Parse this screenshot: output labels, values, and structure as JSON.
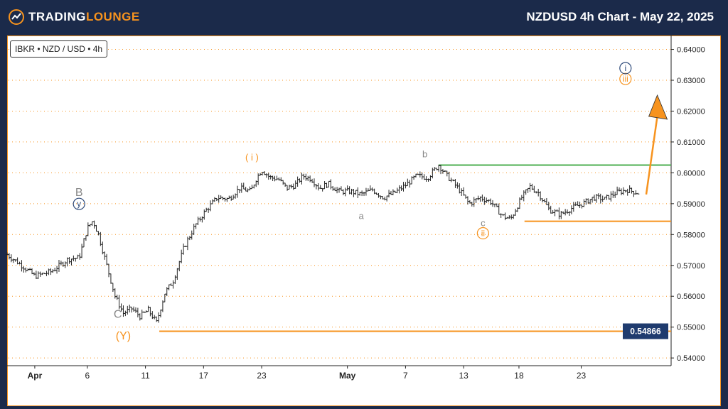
{
  "header": {
    "brand_main": "TRADING",
    "brand_accent": "LOUNGE",
    "title": "NZDUSD 4h Chart - May 22, 2025"
  },
  "symbol_label": "IBKR • NZD / USD • 4h",
  "colors": {
    "background": "#1b2a4a",
    "accent": "#f7931e",
    "wave_navy": "#2e4a7a",
    "wave_grey": "#888888",
    "green_line": "#4caf50",
    "price_label_bg": "#1f3b6e"
  },
  "chart_data": {
    "type": "candlestick",
    "title": "NZDUSD 4h Chart - May 22, 2025",
    "y_ticks": [
      "0.54000",
      "0.55000",
      "0.56000",
      "0.57000",
      "0.58000",
      "0.59000",
      "0.60000",
      "0.61000",
      "0.62000",
      "0.63000",
      "0.64000"
    ],
    "x_ticks": [
      "Apr",
      "6",
      "11",
      "17",
      "23",
      "May",
      "7",
      "13",
      "18",
      "23"
    ],
    "ylim": [
      0.5375,
      0.6445
    ],
    "close_path": [
      [
        0,
        0.5735
      ],
      [
        12,
        0.5695
      ],
      [
        20,
        0.5665
      ],
      [
        32,
        0.568
      ],
      [
        44,
        0.572
      ],
      [
        52,
        0.5725
      ],
      [
        58,
        0.582
      ],
      [
        62,
        0.5845
      ],
      [
        66,
        0.58
      ],
      [
        72,
        0.57
      ],
      [
        78,
        0.56
      ],
      [
        84,
        0.5545
      ],
      [
        90,
        0.556
      ],
      [
        96,
        0.5535
      ],
      [
        102,
        0.5555
      ],
      [
        108,
        0.5515
      ],
      [
        114,
        0.561
      ],
      [
        120,
        0.565
      ],
      [
        128,
        0.576
      ],
      [
        136,
        0.583
      ],
      [
        144,
        0.588
      ],
      [
        152,
        0.592
      ],
      [
        160,
        0.5915
      ],
      [
        168,
        0.595
      ],
      [
        176,
        0.594
      ],
      [
        180,
        0.598
      ],
      [
        184,
        0.601
      ],
      [
        190,
        0.5985
      ],
      [
        196,
        0.598
      ],
      [
        202,
        0.595
      ],
      [
        208,
        0.596
      ],
      [
        214,
        0.599
      ],
      [
        220,
        0.598
      ],
      [
        226,
        0.595
      ],
      [
        232,
        0.5965
      ],
      [
        240,
        0.594
      ],
      [
        248,
        0.594
      ],
      [
        256,
        0.593
      ],
      [
        264,
        0.5945
      ],
      [
        272,
        0.592
      ],
      [
        280,
        0.5935
      ],
      [
        288,
        0.596
      ],
      [
        296,
        0.599
      ],
      [
        304,
        0.5985
      ],
      [
        312,
        0.6025
      ],
      [
        318,
        0.599
      ],
      [
        326,
        0.595
      ],
      [
        334,
        0.59
      ],
      [
        342,
        0.592
      ],
      [
        350,
        0.5905
      ],
      [
        358,
        0.586
      ],
      [
        364,
        0.585
      ],
      [
        372,
        0.592
      ],
      [
        378,
        0.5955
      ],
      [
        384,
        0.5935
      ],
      [
        392,
        0.588
      ],
      [
        400,
        0.5865
      ],
      [
        408,
        0.5885
      ],
      [
        416,
        0.59
      ],
      [
        424,
        0.592
      ],
      [
        432,
        0.5915
      ],
      [
        440,
        0.5935
      ],
      [
        448,
        0.5945
      ],
      [
        456,
        0.5935
      ]
    ],
    "x_total": 480,
    "horizontal_lines": [
      {
        "name": "support-orange",
        "value": 0.54866,
        "x_from": 110,
        "x_to": 480
      },
      {
        "name": "green-level",
        "value": 0.6025,
        "x_from": 312,
        "x_to": 480
      },
      {
        "name": "invalidation-orange",
        "value": 0.5843,
        "x_from": 374,
        "x_to": 480
      }
    ],
    "price_label": "0.54866",
    "projection": {
      "from": [
        462,
        0.593
      ],
      "to": [
        470,
        0.6215
      ]
    },
    "wave_labels": [
      {
        "text": "B",
        "x": 52,
        "y": 0.593,
        "color": "grey"
      },
      {
        "text": "y",
        "x": 52,
        "y": 0.589,
        "color": "navy",
        "circle": true
      },
      {
        "text": "C",
        "x": 80,
        "y": 0.5535,
        "color": "grey"
      },
      {
        "text": "(Y)",
        "x": 84,
        "y": 0.5465,
        "color": "orange"
      },
      {
        "text": "( i )",
        "x": 177,
        "y": 0.6045,
        "color": "orange"
      },
      {
        "text": "a",
        "x": 256,
        "y": 0.5855,
        "color": "grey"
      },
      {
        "text": "b",
        "x": 302,
        "y": 0.6055,
        "color": "grey"
      },
      {
        "text": "c",
        "x": 344,
        "y": 0.5832,
        "color": "grey"
      },
      {
        "text": "ii",
        "x": 344,
        "y": 0.5795,
        "color": "orange",
        "circle": true
      },
      {
        "text": "iii",
        "x": 447,
        "y": 0.6295,
        "color": "orange",
        "circle": true
      },
      {
        "text": "i",
        "x": 447,
        "y": 0.633,
        "color": "navy",
        "circle": true
      }
    ]
  }
}
